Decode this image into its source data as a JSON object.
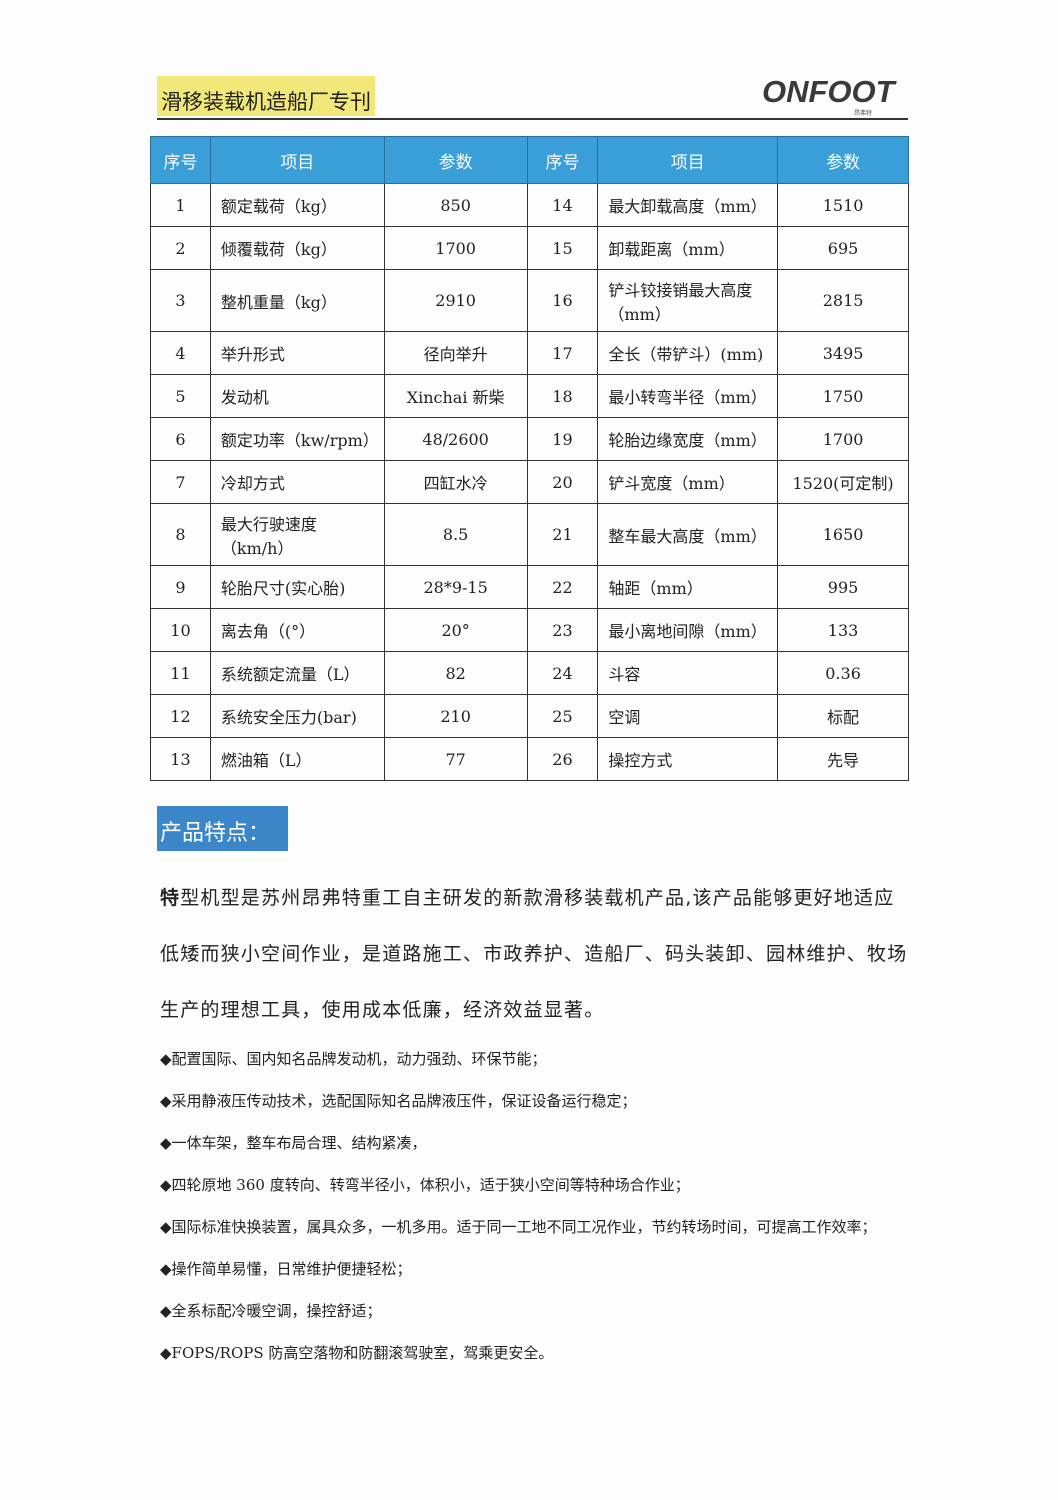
{
  "header": {
    "title": "滑移装载机造船厂专刊",
    "logo": "ONFOOT",
    "logo_sub": "昂弗特"
  },
  "table": {
    "headers": [
      "序号",
      "项目",
      "参数",
      "序号",
      "项目",
      "参数"
    ],
    "rows": [
      [
        "1",
        "额定载荷（kg）",
        "850",
        "14",
        "最大卸载高度（mm）",
        "1510"
      ],
      [
        "2",
        "倾覆载荷（kg）",
        "1700",
        "15",
        "卸载距离（mm）",
        "695"
      ],
      [
        "3",
        "整机重量（kg）",
        "2910",
        "16",
        "铲斗铰接销最大高度（mm）",
        "2815"
      ],
      [
        "4",
        "举升形式",
        "径向举升",
        "17",
        "全长（带铲斗）(mm)",
        "3495"
      ],
      [
        "5",
        "发动机",
        "Xinchai 新柴",
        "18",
        "最小转弯半径（mm）",
        "1750"
      ],
      [
        "6",
        "额定功率（kw/rpm）",
        "48/2600",
        "19",
        "轮胎边缘宽度（mm）",
        "1700"
      ],
      [
        "7",
        "冷却方式",
        "四缸水冷",
        "20",
        "铲斗宽度（mm）",
        "1520(可定制)"
      ],
      [
        "8",
        "最大行驶速度（km/h）",
        "8.5",
        "21",
        "整车最大高度（mm）",
        "1650"
      ],
      [
        "9",
        "轮胎尺寸(实心胎)",
        "28*9-15",
        "22",
        "轴距（mm）",
        "995"
      ],
      [
        "10",
        "离去角（(°）",
        "20°",
        "23",
        "最小离地间隙（mm）",
        "133"
      ],
      [
        "11",
        "系统额定流量（L）",
        "82",
        "24",
        "斗容",
        "0.36"
      ],
      [
        "12",
        "系统安全压力(bar)",
        "210",
        "25",
        "空调",
        "标配"
      ],
      [
        "13",
        "燃油箱（L）",
        "77",
        "26",
        "操控方式",
        "先导"
      ]
    ]
  },
  "features": {
    "heading": "产品特点：",
    "intro_bold": "特",
    "intro": "型机型是苏州昂弗特重工自主研发的新款滑移装载机产品,该产品能够更好地适应低矮而狭小空间作业，是道路施工、市政养护、造船厂、码头装卸、园林维护、牧场生产的理想工具，使用成本低廉，经济效益显著。",
    "bullets": [
      "◆配置国际、国内知名品牌发动机，动力强劲、环保节能；",
      "◆采用静液压传动技术，选配国际知名品牌液压件，保证设备运行稳定；",
      "◆一体车架，整车布局合理、结构紧凑，",
      "◆四轮原地 360 度转向、转弯半径小，体积小，适于狭小空间等特种场合作业；",
      "◆国际标准快换装置，属具众多，一机多用。适于同一工地不同工况作业，节约转场时间，可提高工作效率；",
      "◆操作简单易懂，日常维护便捷轻松；",
      "◆全系标配冷暖空调，操控舒适；",
      "◆FOPS/ROPS 防高空落物和防翻滚驾驶室，驾乘更安全。"
    ]
  }
}
